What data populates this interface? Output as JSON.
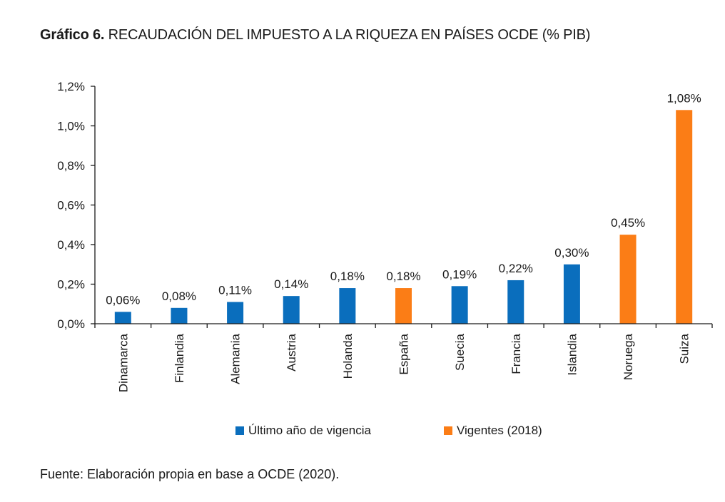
{
  "title": {
    "lead": "Gráfico 6.",
    "text": "RECAUDACIÓN DEL IMPUESTO A LA RIQUEZA EN PAÍSES OCDE (% PIB)"
  },
  "source": "Fuente: Elaboración propia en base a OCDE (2020).",
  "colors": {
    "blue": "#0a6ebd",
    "orange": "#fb7d16",
    "axis": "#1a1a1a"
  },
  "chart_data": {
    "type": "bar",
    "title": "RECAUDACIÓN DEL IMPUESTO A LA RIQUEZA EN PAÍSES OCDE (% PIB)",
    "xlabel": "",
    "ylabel": "",
    "ylim": [
      0,
      1.2
    ],
    "yticks": [
      0,
      0.2,
      0.4,
      0.6,
      0.8,
      1.0,
      1.2
    ],
    "ytick_labels": [
      "0,0%",
      "0,2%",
      "0,4%",
      "0,6%",
      "0,8%",
      "1,0%",
      "1,2%"
    ],
    "grid": false,
    "legend_position": "bottom",
    "categories": [
      "Dinamarca",
      "Finlandia",
      "Alemania",
      "Austria",
      "Holanda",
      "España",
      "Suecia",
      "Francia",
      "Islandia",
      "Noruega",
      "Suiza"
    ],
    "values": [
      0.06,
      0.08,
      0.11,
      0.14,
      0.18,
      0.18,
      0.19,
      0.22,
      0.3,
      0.45,
      1.08
    ],
    "value_labels": [
      "0,06%",
      "0,08%",
      "0,11%",
      "0,14%",
      "0,18%",
      "0,18%",
      "0,19%",
      "0,22%",
      "0,30%",
      "0,45%",
      "1,08%"
    ],
    "groups": [
      "blue",
      "blue",
      "blue",
      "blue",
      "blue",
      "orange",
      "blue",
      "blue",
      "blue",
      "orange",
      "orange"
    ],
    "series": [
      {
        "name": "Último año de vigencia",
        "color": "#0a6ebd"
      },
      {
        "name": "Vigentes (2018)",
        "color": "#fb7d16"
      }
    ]
  }
}
